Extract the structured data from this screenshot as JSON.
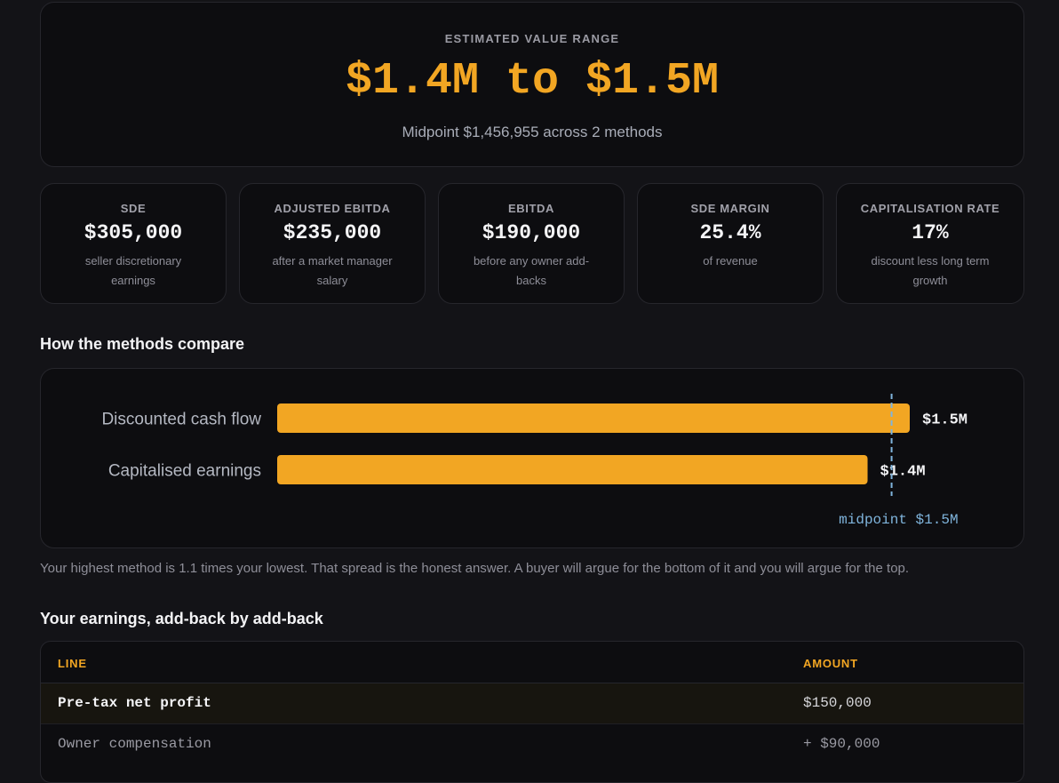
{
  "hero": {
    "eyebrow": "ESTIMATED VALUE RANGE",
    "range": "$1.4M to $1.5M",
    "midpoint_text": "Midpoint $1,456,955 across 2 methods"
  },
  "metrics": [
    {
      "label": "SDE",
      "value": "$305,000",
      "desc": "seller discretionary earnings"
    },
    {
      "label": "ADJUSTED EBITDA",
      "value": "$235,000",
      "desc": "after a market manager salary"
    },
    {
      "label": "EBITDA",
      "value": "$190,000",
      "desc": "before any owner add-backs"
    },
    {
      "label": "SDE MARGIN",
      "value": "25.4%",
      "desc": "of revenue"
    },
    {
      "label": "CAPITALISATION RATE",
      "value": "17%",
      "desc": "discount less long term growth"
    }
  ],
  "compare": {
    "heading": "How the methods compare",
    "note": "Your highest method is 1.1 times your lowest. That spread is the honest answer. A buyer will argue for the bottom of it and you will argue for the top."
  },
  "chart_data": {
    "type": "bar",
    "orientation": "horizontal",
    "categories": [
      "Discounted cash flow",
      "Capitalised earnings"
    ],
    "values": [
      1500000,
      1400000
    ],
    "value_labels": [
      "$1.5M",
      "$1.4M"
    ],
    "bar_color": "#f2a623",
    "midpoint": 1456955,
    "midpoint_label": "midpoint $1.5M",
    "midpoint_color": "#7fb4dc",
    "grid": false
  },
  "earnings": {
    "heading": "Your earnings, add-back by add-back",
    "columns": [
      "LINE",
      "AMOUNT"
    ],
    "rows": [
      {
        "line": "Pre-tax net profit",
        "amount": "$150,000"
      },
      {
        "line": "Owner compensation",
        "amount": "+ $90,000"
      }
    ]
  },
  "colors": {
    "accent": "#f2a623",
    "background": "#131317",
    "card": "#0d0d10"
  }
}
